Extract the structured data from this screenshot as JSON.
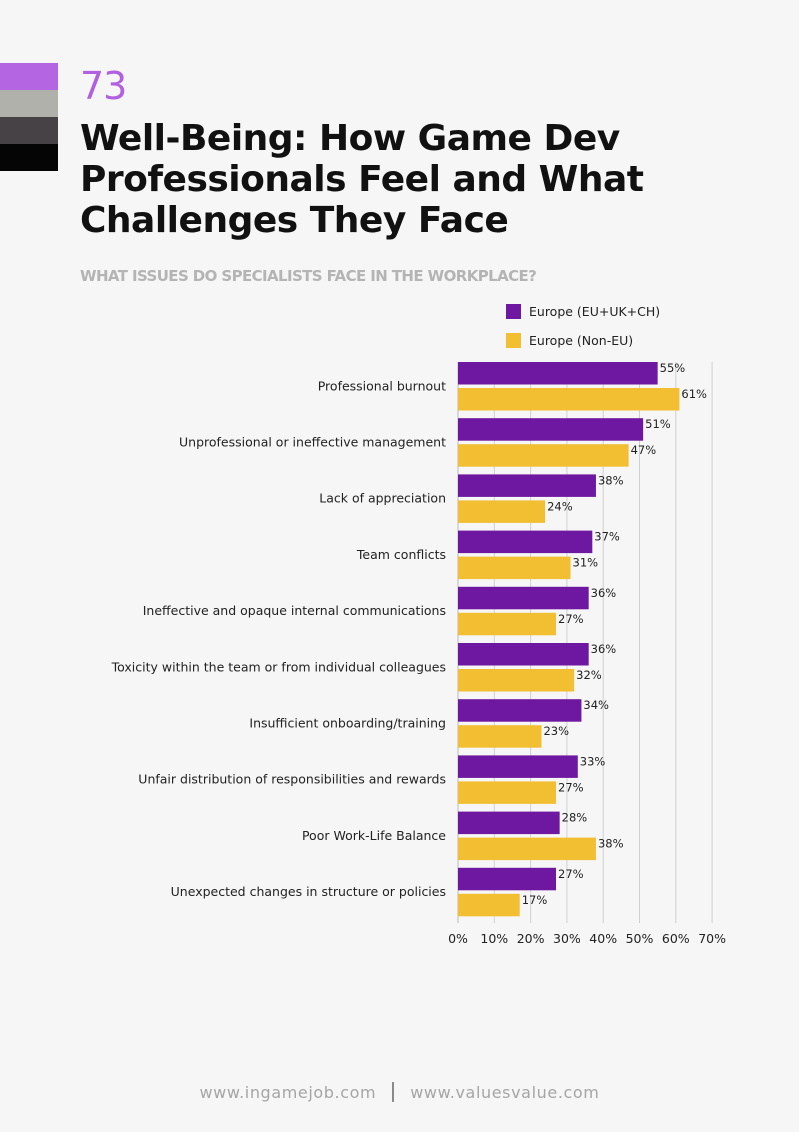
{
  "page": {
    "number": "73",
    "title": "Well-Being: How Game Dev Professionals Feel and What Challenges They Face",
    "color_stack": [
      "#b466e2",
      "#b1b1ab",
      "#474246",
      "#050505"
    ]
  },
  "chart_data": {
    "type": "bar",
    "orientation": "horizontal",
    "title": "WHAT ISSUES DO SPECIALISTS FACE IN THE WORKPLACE?",
    "categories": [
      "Professional burnout",
      "Unprofessional or ineffective management",
      "Lack of appreciation",
      "Team conflicts",
      "Ineffective and opaque internal communications",
      "Toxicity within the team or from individual colleagues",
      "Insufficient onboarding/training",
      "Unfair distribution of responsibilities and rewards",
      "Poor Work-Life Balance",
      "Unexpected changes in structure or policies"
    ],
    "series": [
      {
        "name": "Europe (EU+UK+CH)",
        "color": "#6e17a0",
        "values": [
          55,
          51,
          38,
          37,
          36,
          36,
          34,
          33,
          28,
          27
        ],
        "labels": [
          "55%",
          "51%",
          "38%",
          "37%",
          "36%",
          "36%",
          "34%",
          "33%",
          "28%",
          "27%"
        ]
      },
      {
        "name": "Europe (Non-EU)",
        "color": "#f2bf33",
        "values": [
          61,
          47,
          24,
          31,
          27,
          32,
          23,
          27,
          38,
          17
        ],
        "labels": [
          "61%",
          "47%",
          "24%",
          "31%",
          "27%",
          "32%",
          "23%",
          "27%",
          "38%",
          "17%"
        ]
      }
    ],
    "xlim": [
      0,
      70
    ],
    "xticks": [
      0,
      10,
      20,
      30,
      40,
      50,
      60,
      70
    ],
    "xtick_labels": [
      "0%",
      "10%",
      "20%",
      "30%",
      "40%",
      "50%",
      "60%",
      "70%"
    ],
    "grid": true,
    "legend_position": "top-right"
  },
  "footer": {
    "left": "www.ingamejob.com",
    "right": "www.valuesvalue.com"
  }
}
